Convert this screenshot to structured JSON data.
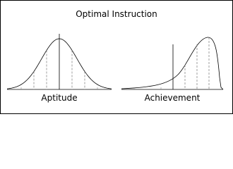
{
  "title": "Optimal Instruction",
  "panels": [
    {
      "label": "Aptitude"
    },
    {
      "label": "Achievement"
    }
  ]
}
